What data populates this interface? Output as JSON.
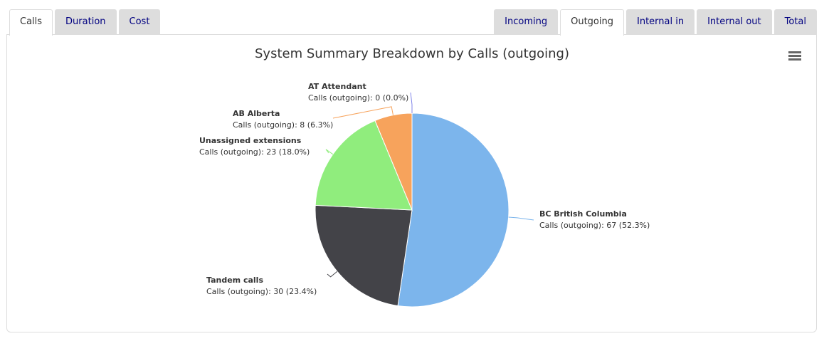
{
  "tabs": {
    "left": [
      "Calls",
      "Duration",
      "Cost"
    ],
    "right": [
      "Incoming",
      "Outgoing",
      "Internal in",
      "Internal out",
      "Total"
    ]
  },
  "chart_data": {
    "type": "pie",
    "title": "System Summary Breakdown by Calls (outgoing)",
    "categories": [
      "BC British Columbia",
      "Tandem calls",
      "Unassigned extensions",
      "AB Alberta",
      "AT Attendant"
    ],
    "values": [
      67,
      30,
      23,
      8,
      0
    ],
    "value_labels": [
      "Calls (outgoing): 67 (52.3%)",
      "Calls (outgoing): 30 (23.4%)",
      "Calls (outgoing): 23 (18.0%)",
      "Calls (outgoing): 8 (6.3%)",
      "Calls (outgoing): 0 (0.0%)"
    ],
    "colors": [
      "#7cb5ec",
      "#434348",
      "#90ed7d",
      "#f7a35c",
      "#8085e9"
    ]
  }
}
